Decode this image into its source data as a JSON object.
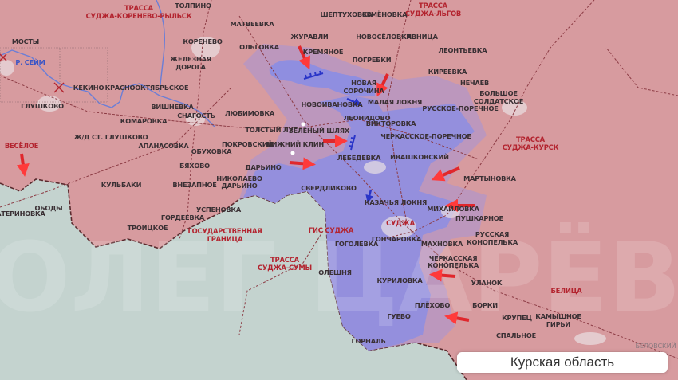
{
  "colors": {
    "russia_area": "#d79b9f",
    "ukraine_border_side": "#c4d3cf",
    "controlled_area": "#8f8ee0",
    "gray_zone": "#b596c4",
    "attack_arrow": "#e0272c",
    "defense_arrow": "#2a35c8",
    "border_line": "#5a2a2e",
    "road_line": "#8c3b44"
  },
  "caption": "Курская область",
  "watermark": "ОЛЕГ ЦАРЁВ",
  "red_labels": [
    "ТРАССА",
    "СУДЖА-КОРЕНЕВО-РЫЛЬСК",
    "ТРАССА",
    "СУДЖА-ЛЬГОВ",
    "ТРАССА",
    "СУДЖА-КУРСК",
    "ВЕСЁЛОЕ",
    "ГОСУДАРСТВЕННАЯ",
    "ГРАНИЦА",
    "ТРАССА",
    "СУДЖА-СУМЫ",
    "ГИС СУДЖА",
    "СУДЖА",
    "БЕЛИЦА"
  ],
  "river_label": "Р. СЕЙМ",
  "places": [
    "ТОЛПИНО",
    "МАТВЕЕВКА",
    "ШЕПТУХОВКА",
    "СЕМЁНОВКА",
    "НОВОСЁЛОВКА",
    "ИВНИЦА",
    "ЖУРАВЛИ",
    "КРЕМЯНОЕ",
    "ОЛЬГОВКА",
    "ПОГРЕБКИ",
    "КОРЕНЕВО",
    "МОСТЫ",
    "ЖЕЛЕЗНАЯ",
    "ДОРОГА",
    "КЕКИНО",
    "КРАСНООКТЯБРЬСКОЕ",
    "ГЛУШКОВО",
    "ВИШНЕВКА",
    "СНАГОСТЬ",
    "КОМАРОВКА",
    "ЛЮБИМОВКА",
    "НОВОИВАНОВКА",
    "НОВАЯ",
    "СОРОЧИНА",
    "МАЛАЯ ЛОКНЯ",
    "ЛЕОНИДОВО",
    "ВИКТОРОВКА",
    "РУССКОЕ-ПОРЕЧНОЕ",
    "КИРЕЕВКА",
    "ЛЕОНТЬЕВКА",
    "НЕЧАЕВ",
    "БОЛЬШОЕ",
    "СОЛДАТСКОЕ",
    "ЧЕРКАССКОЕ-ПОРЕЧНОЕ",
    "ИВАШКОВСКИЙ",
    "МАРТЫНОВКА",
    "ТОЛСТЫЙ ЛУГ",
    "ЗЕЛЁНЫЙ ШЛЯХ",
    "НИЖНИЙ КЛИН",
    "ЛЕБЕДЕВКА",
    "Ж/Д СТ. ГЛУШКОВО",
    "АПАНАСОВКА",
    "ОБУХОВКА",
    "ПОКРОВСКИЙ",
    "ДАРЬИНО",
    "НИКОЛАЕВО",
    "ДАРЬИНО",
    "БЯХОВО",
    "ВНЕЗАПНОЕ",
    "КУЛЬБАКИ",
    "СВЕРДЛИКОВО",
    "КАЗАЧЬЯ ЛОКНЯ",
    "МИХАЙЛОВКА",
    "ПУШКАРНОЕ",
    "РУССКАЯ",
    "КОНОПЕЛЬКА",
    "ГОНЧАРОВКА",
    "ГОГОЛЕВКА",
    "МАХНОВКА",
    "ЧЕРКАССКАЯ",
    "КОНОПЕЛЬКА",
    "КУРИЛОВКА",
    "УЛАНОК",
    "ПЛЁХОВО",
    "БОРКИ",
    "ГУЕВО",
    "КРУПЕЦ",
    "КАМЫШНОЕ",
    "ГИРЬИ",
    "СПАЛЬНОЕ",
    "ГОРНАЛЬ",
    "ОЛЕШНЯ",
    "УСПЕНОВКА",
    "ГОРДЕЕВКА",
    "ТРОИЦКОЕ",
    "ОБОДЫ",
    "ЕКАТЕРИНОВКА"
  ],
  "faint_labels": [
    "БЕЛОВСКИЙ"
  ]
}
